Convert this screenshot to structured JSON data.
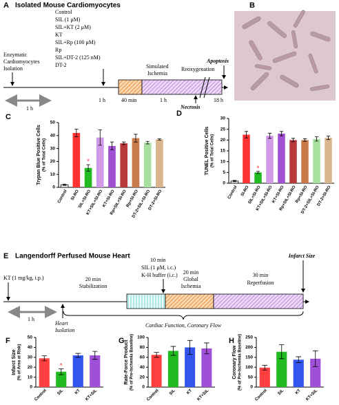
{
  "panel_a": {
    "label": "A",
    "title": "Isolated Mouse Cardiomyocytes",
    "treatments": [
      "Control",
      "SIL (1 μM)",
      "SIL+KT (2 μM)",
      "KT",
      "SIL+Rp (100 μM)",
      "Rp",
      "SIL+DT-2 (125 nM)",
      "DT-2"
    ],
    "isolation": [
      "Enzymatic",
      "Cardiomyocytes",
      "Isolation"
    ],
    "first_interval": "1 h",
    "second_interval": "1 h",
    "ischemia": [
      "Simulated",
      "Ischemia"
    ],
    "ischemia_time": "40 min",
    "reoxygenation": "Reoxygenation",
    "reoxygenation_time": "1 h",
    "late_time": "18 h",
    "apoptosis": "Apoptosis",
    "necrosis": "Necrosis"
  },
  "panel_b": {
    "label": "B"
  },
  "panel_e": {
    "label": "E",
    "title": "Langendorff Perfused Mouse Heart",
    "pretreatment": "KT (1 mg/kg, i.p.)",
    "interval": "1 h",
    "isolation": [
      "Heart",
      "Isolation"
    ],
    "stabilization": [
      "20 min",
      "Stabilization"
    ],
    "treatment": [
      "10 min",
      "SIL (1 μM, i.c.)",
      "K-H buffer (i.c.)"
    ],
    "ischemia": [
      "20 min",
      "Global",
      "Ischemia"
    ],
    "reperfusion": [
      "30 min",
      "Reperfusion"
    ],
    "endpoint": "Infarct Size",
    "measurements": "Cardiac Function, Coronary Flow"
  },
  "chart_data": [
    {
      "type": "bar",
      "label": "C",
      "ylabel": [
        "Trypan Blue Positive Cells",
        "(% of Total Cells)"
      ],
      "categories": [
        "Control",
        "SI-RO",
        "SIL+SI-RO",
        "KT+SIL+SI-RO",
        "KT+SI-RO",
        "Rp+SIL+SI-RO",
        "Rp+SI-RO",
        "DT-2+SIL+SI-RO",
        "DT-2+SI-RO"
      ],
      "values": [
        2,
        42,
        15,
        38.5,
        32,
        34,
        38,
        34.5,
        37
      ],
      "errors": [
        0.5,
        3,
        2.5,
        6,
        3,
        1,
        3,
        1,
        0.5
      ],
      "colors": [
        "#ffffff",
        "#ff3333",
        "#22bb22",
        "#d09ae8",
        "#a050d0",
        "#b83a3a",
        "#c87a4a",
        "#a8e0a0",
        "#d9b48c"
      ],
      "ylim": [
        0,
        50
      ],
      "yticks": [
        0,
        10,
        20,
        30,
        40,
        50
      ],
      "annotations": [
        {
          "category": "SIL+SI-RO",
          "text": "*"
        }
      ]
    },
    {
      "type": "bar",
      "label": "D",
      "ylabel": [
        "TUNEL Positive Cells",
        "(% of Total Cells)"
      ],
      "categories": [
        "Control",
        "SI-RO",
        "SIL+SI-RO",
        "KT+SIL+SI-RO",
        "KT+SI-RO",
        "Rp+SIL+SI-RO",
        "Rp+SI-RO",
        "DT-2+SIL+SI-RO",
        "DT-2+SI-RO"
      ],
      "values": [
        1,
        22.5,
        5,
        22,
        23,
        20,
        20,
        20.5,
        21
      ],
      "errors": [
        0.3,
        1.5,
        0.5,
        1.2,
        1,
        0.8,
        0.6,
        1,
        0.8
      ],
      "colors": [
        "#ffffff",
        "#ff3333",
        "#22bb22",
        "#d09ae8",
        "#a050d0",
        "#b83a3a",
        "#c87a4a",
        "#a8e0a0",
        "#d9b48c"
      ],
      "ylim": [
        0,
        30
      ],
      "yticks": [
        0,
        5,
        10,
        15,
        20,
        25,
        30
      ],
      "annotations": [
        {
          "category": "SIL+SI-RO",
          "text": "*"
        }
      ]
    },
    {
      "type": "bar",
      "label": "F",
      "ylabel": [
        "Infarct Size",
        "(% of Area at Risk)"
      ],
      "categories": [
        "Control",
        "SIL",
        "KT",
        "KT+SIL"
      ],
      "values": [
        29,
        15.5,
        32,
        32
      ],
      "errors": [
        2.5,
        3,
        2,
        4
      ],
      "colors": [
        "#ff4040",
        "#22bb22",
        "#3355ee",
        "#a050d8"
      ],
      "ylim": [
        0,
        50
      ],
      "yticks": [
        0,
        10,
        20,
        30,
        40,
        50
      ],
      "annotations": [
        {
          "category": "SIL",
          "text": "*"
        }
      ]
    },
    {
      "type": "bar",
      "label": "G",
      "ylabel": [
        "Rate-Force Product",
        "(% of Pre-Ischemia Baseline)"
      ],
      "categories": [
        "Control",
        "SIL",
        "KT",
        "KT+SIL"
      ],
      "values": [
        65,
        73,
        80,
        78
      ],
      "errors": [
        5,
        9,
        14,
        11
      ],
      "colors": [
        "#ff4040",
        "#22bb22",
        "#3355ee",
        "#a050d8"
      ],
      "ylim": [
        0,
        100
      ],
      "yticks": [
        0,
        20,
        40,
        60,
        80,
        100
      ]
    },
    {
      "type": "bar",
      "label": "H",
      "ylabel": [
        "Coronary Flow",
        "(% of Pre-Ischemia Baseline)"
      ],
      "categories": [
        "Control",
        "SIL",
        "KT",
        "KT+SIL"
      ],
      "values": [
        98,
        178,
        138,
        143
      ],
      "errors": [
        12,
        35,
        15,
        40
      ],
      "colors": [
        "#ff4040",
        "#22bb22",
        "#3355ee",
        "#a050d8"
      ],
      "ylim": [
        0,
        250
      ],
      "yticks": [
        0,
        50,
        100,
        150,
        200,
        250
      ]
    }
  ]
}
